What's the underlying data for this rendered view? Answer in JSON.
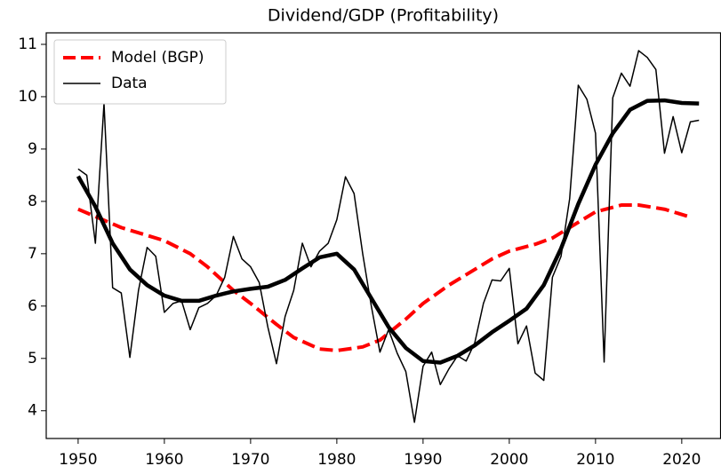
{
  "chart_data": {
    "type": "line",
    "title": "Dividend/GDP (Profitability)",
    "xlim": [
      1946.3,
      2024.5
    ],
    "xticks": [
      1950,
      1960,
      1970,
      1980,
      1990,
      2000,
      2010,
      2020
    ],
    "ylim": [
      3.47,
      11.22
    ],
    "yticks": [
      4,
      5,
      6,
      7,
      8,
      9,
      10,
      11
    ],
    "legend": "upper left",
    "series": [
      {
        "name": "Model (BGP)",
        "color": "#ff0000",
        "dashed": true,
        "width": 4,
        "x": [
          1950,
          1955,
          1960,
          1963,
          1965,
          1968,
          1970,
          1973,
          1975,
          1978,
          1980,
          1983,
          1985,
          1988,
          1990,
          1993,
          1995,
          1998,
          2000,
          2003,
          2005,
          2008,
          2010,
          2013,
          2015,
          2018,
          2021
        ],
        "values": [
          7.85,
          7.5,
          7.25,
          7.0,
          6.75,
          6.3,
          6.05,
          5.65,
          5.4,
          5.18,
          5.15,
          5.22,
          5.35,
          5.75,
          6.05,
          6.4,
          6.6,
          6.9,
          7.05,
          7.18,
          7.3,
          7.6,
          7.8,
          7.93,
          7.93,
          7.85,
          7.7
        ]
      },
      {
        "name": "Data",
        "color": "#000000",
        "dashed": false,
        "width": 1.5,
        "x": [
          1950,
          1951,
          1952,
          1953,
          1954,
          1955,
          1956,
          1957,
          1958,
          1959,
          1960,
          1961,
          1962,
          1963,
          1964,
          1965,
          1966,
          1967,
          1968,
          1969,
          1970,
          1971,
          1972,
          1973,
          1974,
          1975,
          1976,
          1977,
          1978,
          1979,
          1980,
          1981,
          1982,
          1983,
          1984,
          1985,
          1986,
          1987,
          1988,
          1989,
          1990,
          1991,
          1992,
          1993,
          1994,
          1995,
          1996,
          1997,
          1998,
          1999,
          2000,
          2001,
          2002,
          2003,
          2004,
          2005,
          2006,
          2007,
          2008,
          2009,
          2010,
          2011,
          2012,
          2013,
          2014,
          2015,
          2016,
          2017,
          2018,
          2019,
          2020,
          2021,
          2022
        ],
        "values": [
          8.62,
          8.5,
          7.2,
          9.87,
          6.35,
          6.25,
          5.02,
          6.3,
          7.12,
          6.95,
          5.88,
          6.05,
          6.1,
          5.55,
          5.97,
          6.05,
          6.2,
          6.55,
          7.33,
          6.9,
          6.75,
          6.45,
          5.6,
          4.9,
          5.8,
          6.3,
          7.2,
          6.75,
          7.05,
          7.2,
          7.65,
          8.47,
          8.15,
          7.0,
          6.0,
          5.12,
          5.55,
          5.1,
          4.75,
          3.78,
          4.85,
          5.12,
          4.5,
          4.8,
          5.05,
          4.95,
          5.3,
          6.05,
          6.5,
          6.48,
          6.72,
          5.28,
          5.62,
          4.72,
          4.58,
          6.55,
          6.95,
          8.05,
          10.22,
          9.95,
          9.3,
          4.93,
          9.98,
          10.45,
          10.2,
          10.88,
          10.75,
          10.52,
          8.92,
          9.62,
          8.93,
          9.52,
          9.55
        ]
      },
      {
        "color": "#000000",
        "dashed": false,
        "width": 4.5,
        "x": [
          1950,
          1952,
          1954,
          1956,
          1958,
          1960,
          1962,
          1964,
          1966,
          1968,
          1970,
          1972,
          1974,
          1976,
          1978,
          1980,
          1982,
          1984,
          1986,
          1988,
          1990,
          1992,
          1994,
          1996,
          1998,
          2000,
          2002,
          2004,
          2006,
          2008,
          2010,
          2012,
          2014,
          2016,
          2018,
          2020,
          2022
        ],
        "values": [
          8.48,
          7.9,
          7.2,
          6.7,
          6.4,
          6.2,
          6.1,
          6.1,
          6.2,
          6.28,
          6.33,
          6.37,
          6.5,
          6.72,
          6.93,
          7.0,
          6.7,
          6.15,
          5.6,
          5.2,
          4.95,
          4.92,
          5.05,
          5.25,
          5.5,
          5.72,
          5.95,
          6.4,
          7.1,
          7.95,
          8.7,
          9.3,
          9.75,
          9.92,
          9.93,
          9.88,
          9.87
        ]
      }
    ]
  }
}
